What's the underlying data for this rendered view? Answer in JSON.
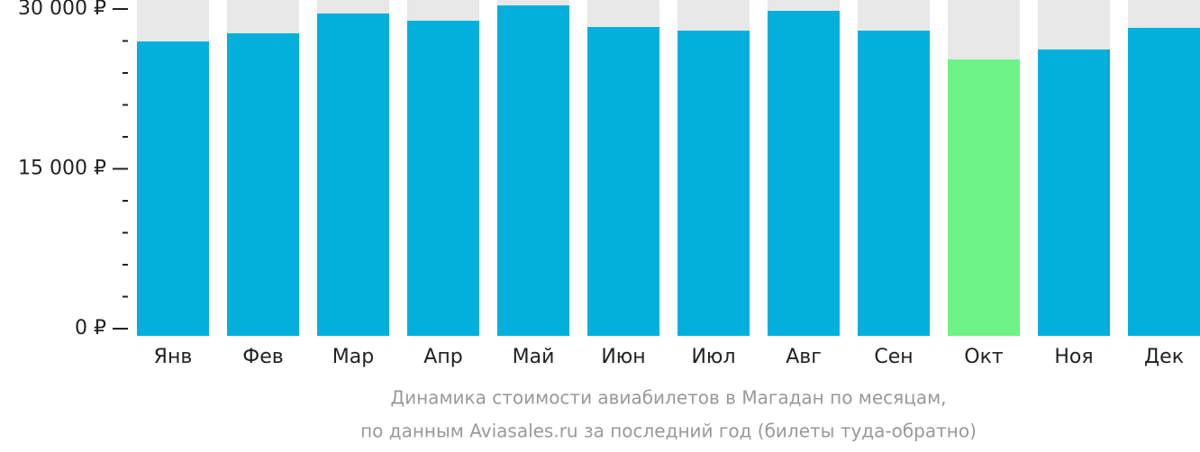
{
  "chart_data": {
    "type": "bar",
    "categories": [
      "Янв",
      "Фев",
      "Мар",
      "Апр",
      "Май",
      "Июн",
      "Июл",
      "Авг",
      "Сен",
      "Окт",
      "Ноя",
      "Дек"
    ],
    "values": [
      26950,
      27720,
      29580,
      28900,
      30340,
      28310,
      27970,
      29830,
      27970,
      25270,
      26200,
      28230
    ],
    "colors": [
      "#03b0dc",
      "#03b0dc",
      "#03b0dc",
      "#03b0dc",
      "#03b0dc",
      "#03b0dc",
      "#03b0dc",
      "#03b0dc",
      "#03b0dc",
      "#6ef386",
      "#03b0dc",
      "#03b0dc"
    ],
    "background_color": "#e8e8e8",
    "ylim": [
      -676,
      30845
    ],
    "yticks": [
      {
        "value": 0,
        "label": "0 ₽"
      },
      {
        "value": 15000,
        "label": "15 000 ₽"
      },
      {
        "value": 30000,
        "label": "30 000 ₽"
      }
    ],
    "yticks_minor": [
      3000,
      6000,
      9000,
      12000,
      18000,
      21000,
      24000,
      27000
    ],
    "caption": [
      "Динамика стоимости авиабилетов в Магадан по месяцам,",
      "по данным Aviasales.ru за последний год (билеты туда-обратно)"
    ]
  }
}
